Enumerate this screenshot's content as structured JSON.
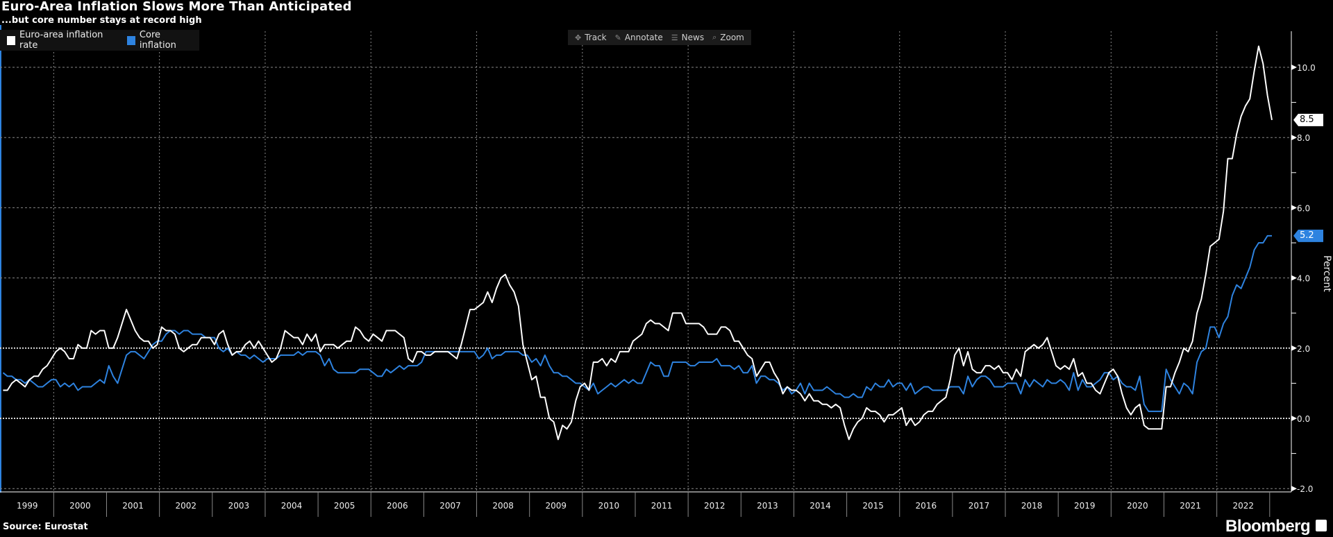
{
  "header": {
    "title": "Euro-Area Inflation Slows More Than Anticipated",
    "subtitle": "...but core number stays at record high"
  },
  "toolbar": {
    "items": [
      {
        "label": "Track",
        "icon": "crosshair-icon",
        "glyph": "✥"
      },
      {
        "label": "Annotate",
        "icon": "pencil-icon",
        "glyph": "✎"
      },
      {
        "label": "News",
        "icon": "news-icon",
        "glyph": "☰"
      },
      {
        "label": "Zoom",
        "icon": "magnifier-icon",
        "glyph": "⌕"
      }
    ]
  },
  "footer": {
    "source": "Source: Eurostat",
    "brand": "Bloomberg"
  },
  "chart_data": {
    "type": "line",
    "title": "Euro-Area Inflation Slows More Than Anticipated",
    "subtitle": "...but core number stays at record high",
    "ylabel": "Percent",
    "ylim": [
      -2.2,
      11.0
    ],
    "yticks": [
      "-2.0",
      "0.0",
      "2.0",
      "4.0",
      "6.0",
      "8.0",
      "10.0"
    ],
    "xlim": [
      "1999-01",
      "2023-01"
    ],
    "xticks": [
      "1999",
      "2000",
      "2001",
      "2002",
      "2003",
      "2004",
      "2005",
      "2006",
      "2007",
      "2008",
      "2009",
      "2010",
      "2011",
      "2012",
      "2013",
      "2014",
      "2015",
      "2016",
      "2017",
      "2018",
      "2019",
      "2020",
      "2021",
      "2022"
    ],
    "frequency": "monthly",
    "start": "1999-01",
    "grid": true,
    "legend_placement": "top-left",
    "reference_lines": [
      0,
      2
    ],
    "series": [
      {
        "name": "Euro-area inflation rate",
        "color": "#ffffff",
        "last_value_label": "8.5",
        "values": [
          0.8,
          0.8,
          1.0,
          1.1,
          1.0,
          0.9,
          1.1,
          1.2,
          1.2,
          1.4,
          1.5,
          1.7,
          1.9,
          2.0,
          1.9,
          1.7,
          1.7,
          2.1,
          2.0,
          2.0,
          2.5,
          2.4,
          2.5,
          2.5,
          2.0,
          2.0,
          2.3,
          2.7,
          3.1,
          2.8,
          2.5,
          2.3,
          2.2,
          2.2,
          2.0,
          2.1,
          2.6,
          2.5,
          2.5,
          2.4,
          2.0,
          1.9,
          2.0,
          2.1,
          2.1,
          2.3,
          2.3,
          2.3,
          2.1,
          2.4,
          2.5,
          2.1,
          1.8,
          1.9,
          1.9,
          2.1,
          2.2,
          2.0,
          2.2,
          2.0,
          1.8,
          1.6,
          1.7,
          2.0,
          2.5,
          2.4,
          2.3,
          2.3,
          2.1,
          2.4,
          2.2,
          2.4,
          1.9,
          2.1,
          2.1,
          2.1,
          2.0,
          2.1,
          2.2,
          2.2,
          2.6,
          2.5,
          2.3,
          2.2,
          2.4,
          2.3,
          2.2,
          2.5,
          2.5,
          2.5,
          2.4,
          2.3,
          1.7,
          1.6,
          1.9,
          1.9,
          1.8,
          1.8,
          1.9,
          1.9,
          1.9,
          1.9,
          1.8,
          1.7,
          2.1,
          2.6,
          3.1,
          3.1,
          3.2,
          3.3,
          3.6,
          3.3,
          3.7,
          4.0,
          4.1,
          3.8,
          3.6,
          3.2,
          2.1,
          1.6,
          1.1,
          1.2,
          0.6,
          0.6,
          0.0,
          -0.1,
          -0.6,
          -0.2,
          -0.3,
          -0.1,
          0.5,
          0.9,
          1.0,
          0.8,
          1.6,
          1.6,
          1.7,
          1.5,
          1.7,
          1.6,
          1.9,
          1.9,
          1.9,
          2.2,
          2.3,
          2.4,
          2.7,
          2.8,
          2.7,
          2.7,
          2.6,
          2.5,
          3.0,
          3.0,
          3.0,
          2.7,
          2.7,
          2.7,
          2.7,
          2.6,
          2.4,
          2.4,
          2.4,
          2.6,
          2.6,
          2.5,
          2.2,
          2.2,
          2.0,
          1.8,
          1.7,
          1.2,
          1.4,
          1.6,
          1.6,
          1.3,
          1.1,
          0.7,
          0.9,
          0.8,
          0.8,
          0.7,
          0.5,
          0.7,
          0.5,
          0.5,
          0.4,
          0.4,
          0.3,
          0.4,
          0.3,
          -0.2,
          -0.6,
          -0.3,
          -0.1,
          0.0,
          0.3,
          0.2,
          0.2,
          0.1,
          -0.1,
          0.1,
          0.1,
          0.2,
          0.3,
          -0.2,
          0.0,
          -0.2,
          -0.1,
          0.1,
          0.2,
          0.2,
          0.4,
          0.5,
          0.6,
          1.1,
          1.8,
          2.0,
          1.5,
          1.9,
          1.4,
          1.3,
          1.3,
          1.5,
          1.5,
          1.4,
          1.5,
          1.3,
          1.3,
          1.1,
          1.4,
          1.2,
          1.9,
          2.0,
          2.1,
          2.0,
          2.1,
          2.3,
          1.9,
          1.5,
          1.4,
          1.5,
          1.4,
          1.7,
          1.2,
          1.3,
          1.0,
          1.0,
          0.8,
          0.7,
          1.0,
          1.3,
          1.4,
          1.2,
          0.7,
          0.3,
          0.1,
          0.3,
          0.4,
          -0.2,
          -0.3,
          -0.3,
          -0.3,
          -0.3,
          0.9,
          0.9,
          1.3,
          1.6,
          2.0,
          1.9,
          2.2,
          3.0,
          3.4,
          4.1,
          4.9,
          5.0,
          5.1,
          5.9,
          7.4,
          7.4,
          8.1,
          8.6,
          8.9,
          9.1,
          9.9,
          10.6,
          10.1,
          9.2,
          8.5
        ]
      },
      {
        "name": "Core inflation",
        "color": "#2e83e0",
        "last_value_label": "5.2",
        "values": [
          1.3,
          1.2,
          1.2,
          1.1,
          1.1,
          1.0,
          1.1,
          1.0,
          0.9,
          0.9,
          1.0,
          1.1,
          1.1,
          0.9,
          1.0,
          0.9,
          1.0,
          0.8,
          0.9,
          0.9,
          0.9,
          1.0,
          1.1,
          1.0,
          1.5,
          1.2,
          1.0,
          1.4,
          1.8,
          1.9,
          1.9,
          1.8,
          1.7,
          1.9,
          2.1,
          2.2,
          2.2,
          2.4,
          2.5,
          2.5,
          2.4,
          2.5,
          2.5,
          2.4,
          2.4,
          2.4,
          2.3,
          2.3,
          2.3,
          2.0,
          1.9,
          2.0,
          1.8,
          1.9,
          1.8,
          1.8,
          1.7,
          1.8,
          1.7,
          1.6,
          1.7,
          1.7,
          1.7,
          1.8,
          1.8,
          1.8,
          1.8,
          1.9,
          1.8,
          1.9,
          1.9,
          1.9,
          1.8,
          1.5,
          1.7,
          1.4,
          1.3,
          1.3,
          1.3,
          1.3,
          1.3,
          1.4,
          1.4,
          1.4,
          1.3,
          1.2,
          1.2,
          1.4,
          1.3,
          1.4,
          1.5,
          1.4,
          1.5,
          1.5,
          1.5,
          1.6,
          1.9,
          1.9,
          1.9,
          1.9,
          1.9,
          1.9,
          1.9,
          1.9,
          1.9,
          1.9,
          1.9,
          1.9,
          1.7,
          1.8,
          2.0,
          1.7,
          1.8,
          1.8,
          1.9,
          1.9,
          1.9,
          1.9,
          1.8,
          1.8,
          1.6,
          1.7,
          1.5,
          1.8,
          1.5,
          1.3,
          1.3,
          1.2,
          1.2,
          1.1,
          1.0,
          1.0,
          0.9,
          0.8,
          1.0,
          0.7,
          0.8,
          0.9,
          1.0,
          0.9,
          1.0,
          1.1,
          1.0,
          1.1,
          1.0,
          1.0,
          1.3,
          1.6,
          1.5,
          1.5,
          1.2,
          1.2,
          1.6,
          1.6,
          1.6,
          1.6,
          1.5,
          1.5,
          1.6,
          1.6,
          1.6,
          1.6,
          1.7,
          1.5,
          1.5,
          1.5,
          1.4,
          1.5,
          1.3,
          1.3,
          1.5,
          1.0,
          1.2,
          1.2,
          1.1,
          1.1,
          1.0,
          0.8,
          0.9,
          0.7,
          0.8,
          1.0,
          0.7,
          1.0,
          0.8,
          0.8,
          0.8,
          0.9,
          0.8,
          0.7,
          0.7,
          0.6,
          0.6,
          0.7,
          0.6,
          0.6,
          0.9,
          0.8,
          1.0,
          0.9,
          0.9,
          1.1,
          0.9,
          1.0,
          1.0,
          0.8,
          1.0,
          0.7,
          0.8,
          0.9,
          0.9,
          0.8,
          0.8,
          0.8,
          0.8,
          0.9,
          0.9,
          0.9,
          0.7,
          1.2,
          0.9,
          1.1,
          1.2,
          1.2,
          1.1,
          0.9,
          0.9,
          0.9,
          1.0,
          1.0,
          1.0,
          0.7,
          1.1,
          0.9,
          1.1,
          1.0,
          0.9,
          1.1,
          1.0,
          1.0,
          1.1,
          1.0,
          0.8,
          1.3,
          0.8,
          1.1,
          0.9,
          0.9,
          1.0,
          1.1,
          1.3,
          1.3,
          1.1,
          1.2,
          1.0,
          0.9,
          0.9,
          0.8,
          1.2,
          0.4,
          0.2,
          0.2,
          0.2,
          0.2,
          1.4,
          1.1,
          0.9,
          0.7,
          1.0,
          0.9,
          0.7,
          1.6,
          1.9,
          2.0,
          2.6,
          2.6,
          2.3,
          2.7,
          2.9,
          3.5,
          3.8,
          3.7,
          4.0,
          4.3,
          4.8,
          5.0,
          5.0,
          5.2,
          5.2
        ]
      }
    ]
  }
}
